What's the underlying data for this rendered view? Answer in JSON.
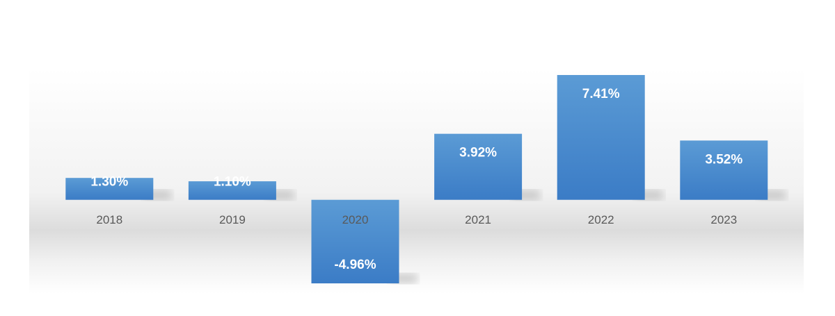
{
  "chart_data": {
    "type": "bar",
    "categories": [
      "2018",
      "2019",
      "2020",
      "2021",
      "2022",
      "2023"
    ],
    "values": [
      1.3,
      1.1,
      -4.96,
      3.92,
      7.41,
      3.52
    ],
    "value_labels": [
      "1.30%",
      "1.10%",
      "-4.96%",
      "3.92%",
      "7.41%",
      "3.52%"
    ],
    "color": "#4a8fd3"
  }
}
